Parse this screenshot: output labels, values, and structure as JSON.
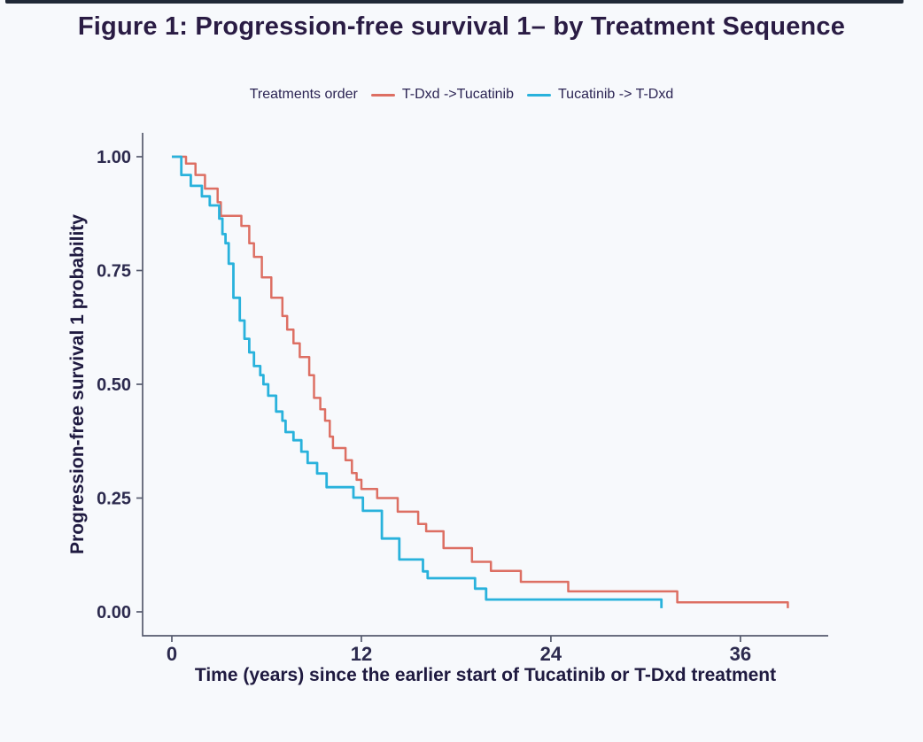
{
  "title": "Figure 1: Progression-free survival 1– by Treatment Sequence",
  "colors": {
    "background": "#f7f9fc",
    "title_text": "#2a1c44",
    "axis_line": "#565b6e",
    "tick_text": "#2c2a4e",
    "series_red": "#dd6f63",
    "series_cyan": "#29b2dc"
  },
  "legend": {
    "title": "Treatments order",
    "items": [
      {
        "label": "T-Dxd ->Tucatinib",
        "color": "#dd6f63"
      },
      {
        "label": "Tucatinib -> T-Dxd",
        "color": "#29b2dc"
      }
    ]
  },
  "chart_data": {
    "type": "line",
    "variant": "kaplan-meier-step",
    "title": "Figure 1: Progression-free survival 1– by Treatment Sequence",
    "xlabel": "Time (years) since the earlier start of Tucatinib or T-Dxd treatment",
    "ylabel": "Progression-free survival 1 probability",
    "xlim": [
      0,
      41.5
    ],
    "ylim": [
      0,
      1
    ],
    "xticks": [
      0,
      12,
      24,
      36
    ],
    "yticks": [
      1,
      0.75,
      0.5,
      0.25,
      0
    ],
    "ytick_labels": [
      "1.00",
      "0.75",
      "0.50",
      "0.25",
      "0.00"
    ],
    "grid": false,
    "legend_position": "top",
    "series": [
      {
        "name": "T-Dxd ->Tucatinib",
        "color": "#dd6f63",
        "start": [
          0,
          1.0
        ],
        "points": [
          [
            0.9,
            0.985
          ],
          [
            1.5,
            0.96
          ],
          [
            2.1,
            0.93
          ],
          [
            2.9,
            0.9
          ],
          [
            3.1,
            0.87
          ],
          [
            4.4,
            0.848
          ],
          [
            4.9,
            0.81
          ],
          [
            5.2,
            0.78
          ],
          [
            5.7,
            0.735
          ],
          [
            6.3,
            0.69
          ],
          [
            7.0,
            0.65
          ],
          [
            7.3,
            0.62
          ],
          [
            7.7,
            0.59
          ],
          [
            8.1,
            0.56
          ],
          [
            8.7,
            0.52
          ],
          [
            9.0,
            0.47
          ],
          [
            9.4,
            0.445
          ],
          [
            9.7,
            0.42
          ],
          [
            10.0,
            0.385
          ],
          [
            10.2,
            0.36
          ],
          [
            11.0,
            0.333
          ],
          [
            11.4,
            0.305
          ],
          [
            11.7,
            0.29
          ],
          [
            12.0,
            0.27
          ],
          [
            13.0,
            0.25
          ],
          [
            14.3,
            0.22
          ],
          [
            15.6,
            0.193
          ],
          [
            16.1,
            0.177
          ],
          [
            17.2,
            0.14
          ],
          [
            19.0,
            0.11
          ],
          [
            20.2,
            0.09
          ],
          [
            22.1,
            0.066
          ],
          [
            25.1,
            0.045
          ],
          [
            32.0,
            0.021
          ],
          [
            39.0,
            0.008
          ]
        ]
      },
      {
        "name": "Tucatinib -> T-Dxd",
        "color": "#29b2dc",
        "start": [
          0,
          1.0
        ],
        "points": [
          [
            0.6,
            0.96
          ],
          [
            1.2,
            0.936
          ],
          [
            1.9,
            0.913
          ],
          [
            2.4,
            0.893
          ],
          [
            3.0,
            0.864
          ],
          [
            3.2,
            0.83
          ],
          [
            3.4,
            0.81
          ],
          [
            3.6,
            0.765
          ],
          [
            3.9,
            0.69
          ],
          [
            4.3,
            0.64
          ],
          [
            4.6,
            0.6
          ],
          [
            4.9,
            0.57
          ],
          [
            5.2,
            0.54
          ],
          [
            5.6,
            0.52
          ],
          [
            5.8,
            0.5
          ],
          [
            6.1,
            0.475
          ],
          [
            6.6,
            0.44
          ],
          [
            7.0,
            0.42
          ],
          [
            7.2,
            0.395
          ],
          [
            7.7,
            0.377
          ],
          [
            8.2,
            0.352
          ],
          [
            8.6,
            0.327
          ],
          [
            9.2,
            0.304
          ],
          [
            9.8,
            0.274
          ],
          [
            11.5,
            0.251
          ],
          [
            12.1,
            0.222
          ],
          [
            13.3,
            0.161
          ],
          [
            14.4,
            0.115
          ],
          [
            15.9,
            0.089
          ],
          [
            16.2,
            0.074
          ],
          [
            19.2,
            0.051
          ],
          [
            19.9,
            0.027
          ],
          [
            31.0,
            0.008
          ]
        ]
      }
    ]
  }
}
